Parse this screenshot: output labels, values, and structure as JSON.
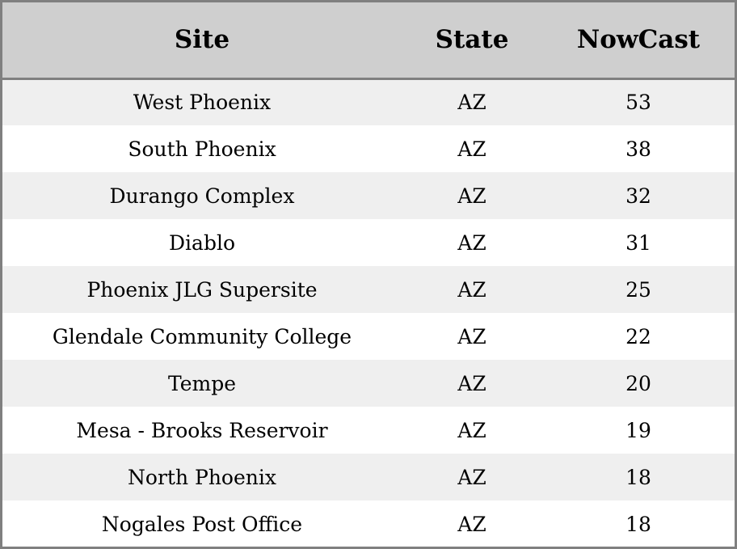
{
  "table": {
    "headers": [
      "Site",
      "State",
      "NowCast"
    ],
    "rows": [
      {
        "site": "West Phoenix",
        "state": "AZ",
        "nowcast": "53"
      },
      {
        "site": "South Phoenix",
        "state": "AZ",
        "nowcast": "38"
      },
      {
        "site": "Durango Complex",
        "state": "AZ",
        "nowcast": "32"
      },
      {
        "site": "Diablo",
        "state": "AZ",
        "nowcast": "31"
      },
      {
        "site": "Phoenix JLG Supersite",
        "state": "AZ",
        "nowcast": "25"
      },
      {
        "site": "Glendale Community College",
        "state": "AZ",
        "nowcast": "22"
      },
      {
        "site": "Tempe",
        "state": "AZ",
        "nowcast": "20"
      },
      {
        "site": "Mesa - Brooks Reservoir",
        "state": "AZ",
        "nowcast": "19"
      },
      {
        "site": "North Phoenix",
        "state": "AZ",
        "nowcast": "18"
      },
      {
        "site": "Nogales Post Office",
        "state": "AZ",
        "nowcast": "18"
      }
    ]
  },
  "colors": {
    "header_background": "#cfcfcf",
    "row_stripe": "#efefef",
    "row_plain": "#ffffff",
    "border": "#808080",
    "text": "#000000"
  }
}
